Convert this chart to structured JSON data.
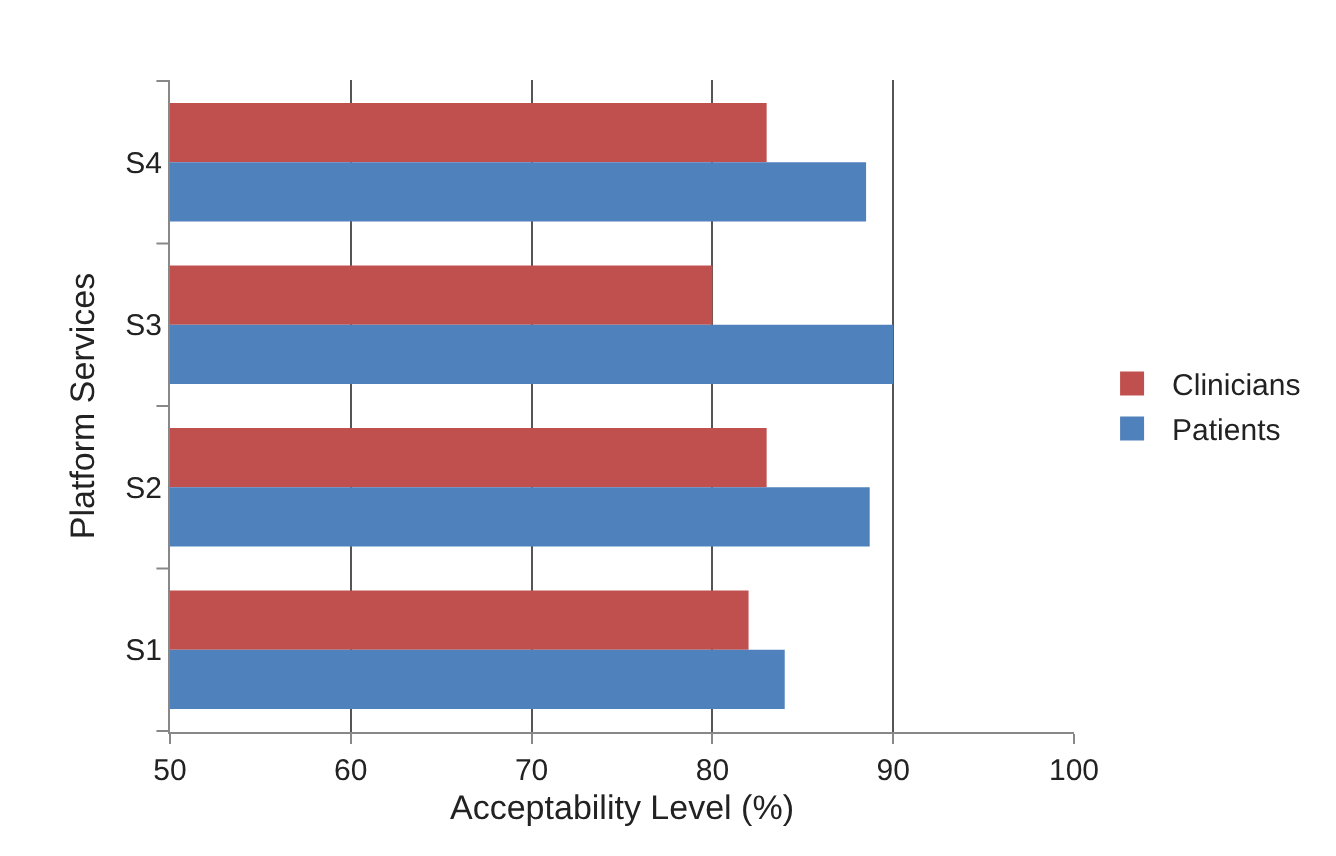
{
  "chart_data": {
    "type": "bar",
    "orientation": "horizontal",
    "xlabel": "Acceptability Level (%)",
    "ylabel": "Platform Services",
    "categories": [
      "S4",
      "S3",
      "S2",
      "S1"
    ],
    "series": [
      {
        "name": "Clinicians",
        "color": "#c0504d",
        "values": [
          83,
          80,
          83,
          82
        ]
      },
      {
        "name": "Patients",
        "color": "#4f81bd",
        "values": [
          88.5,
          90,
          88.7,
          84
        ]
      }
    ],
    "xlim": [
      50,
      100
    ],
    "xticks": [
      50,
      60,
      70,
      80,
      90,
      100
    ],
    "grid": "x",
    "legend": "right"
  }
}
